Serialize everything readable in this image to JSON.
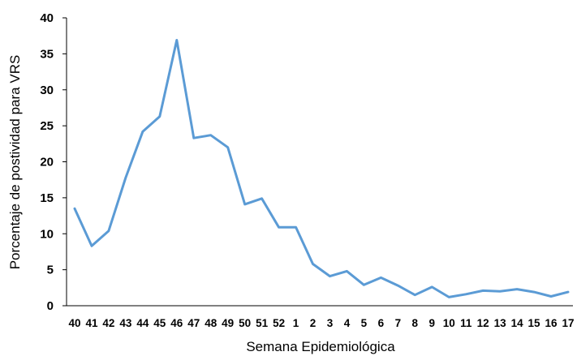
{
  "chart_data": {
    "type": "line",
    "title": "",
    "xlabel": "Semana Epidemiológica",
    "ylabel": "Porcentaje de postividad para VRS",
    "ylim": [
      0,
      40
    ],
    "yticks": [
      0,
      5,
      10,
      15,
      20,
      25,
      30,
      35,
      40
    ],
    "grid": false,
    "legend": "none",
    "categories": [
      "40",
      "41",
      "42",
      "43",
      "44",
      "45",
      "46",
      "47",
      "48",
      "49",
      "50",
      "51",
      "52",
      "1",
      "2",
      "3",
      "4",
      "5",
      "6",
      "7",
      "8",
      "9",
      "10",
      "11",
      "12",
      "13",
      "14",
      "15",
      "16",
      "17"
    ],
    "series": [
      {
        "color": "#5b9bd5",
        "values": [
          13.5,
          8.3,
          10.4,
          17.8,
          24.2,
          26.3,
          36.9,
          23.3,
          23.7,
          22.0,
          14.1,
          14.9,
          10.9,
          10.9,
          5.8,
          4.1,
          4.8,
          2.9,
          3.9,
          2.8,
          1.5,
          2.6,
          1.2,
          1.6,
          2.1,
          2.0,
          2.3,
          1.9,
          1.3,
          1.9
        ]
      }
    ]
  }
}
